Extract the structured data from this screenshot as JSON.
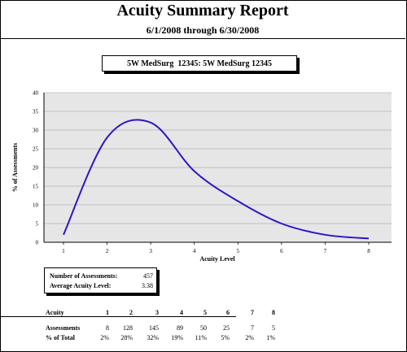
{
  "report": {
    "title": "Acuity Summary Report",
    "date_range": "6/1/2008 through 6/30/2008",
    "unit_label": "5W MedSurg  12345: 5W MedSurg 12345"
  },
  "colors": {
    "plot_background": "#e6e6e6",
    "line": "#2a16c8",
    "grid": "#9a9a9a"
  },
  "chart_data": {
    "type": "line",
    "xlabel": "Acuity Level",
    "ylabel": "% of Assessments",
    "xlim": [
      1,
      8
    ],
    "ylim": [
      0,
      40
    ],
    "x_ticks": [
      1,
      2,
      3,
      4,
      5,
      6,
      7,
      8
    ],
    "y_ticks": [
      0,
      5,
      10,
      15,
      20,
      25,
      30,
      35,
      40
    ],
    "grid": true,
    "legend": "none",
    "series": [
      {
        "x": [
          1,
          2,
          3,
          4,
          5,
          6,
          7,
          8
        ],
        "values": [
          2,
          28,
          32,
          19,
          11,
          5,
          2,
          1
        ]
      }
    ]
  },
  "stats": {
    "assessments_label": "Number of Assessments:",
    "assessments_value": "457",
    "average_label": "Average Acuity Level:",
    "average_value": "3.38"
  },
  "table": {
    "header_label": "Acuity",
    "levels": [
      "1",
      "2",
      "3",
      "4",
      "5",
      "6",
      "7",
      "8"
    ],
    "assessments_label": "Assessments",
    "assessments": [
      "8",
      "128",
      "145",
      "89",
      "50",
      "25",
      "7",
      "5"
    ],
    "percent_label": "% of Total",
    "percent": [
      "2%",
      "28%",
      "32%",
      "19%",
      "11%",
      "5%",
      "2%",
      "1%"
    ]
  }
}
